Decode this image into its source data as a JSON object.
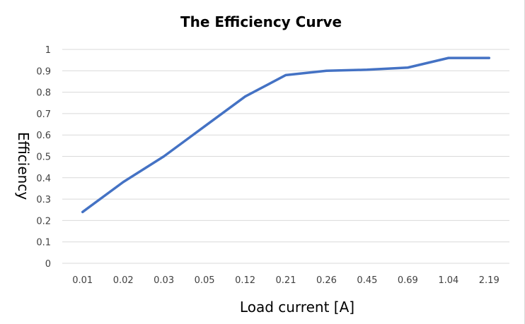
{
  "chart_data": {
    "type": "line",
    "title": "The Efficiency Curve",
    "xlabel": "Load current [A]",
    "ylabel": "Efficiency",
    "categories": [
      "0.01",
      "0.02",
      "0.03",
      "0.05",
      "0.12",
      "0.21",
      "0.26",
      "0.45",
      "0.69",
      "1.04",
      "2.19"
    ],
    "series": [
      {
        "values": [
          0.24,
          0.38,
          0.5,
          0.64,
          0.78,
          0.88,
          0.9,
          0.905,
          0.915,
          0.96,
          0.96
        ]
      }
    ],
    "ylim": [
      0,
      1
    ],
    "yticks": [
      "0",
      "0.1",
      "0.2",
      "0.3",
      "0.4",
      "0.5",
      "0.6",
      "0.7",
      "0.8",
      "0.9",
      "1"
    ],
    "grid": true,
    "legend": "none",
    "line_color": "#4472c4"
  }
}
